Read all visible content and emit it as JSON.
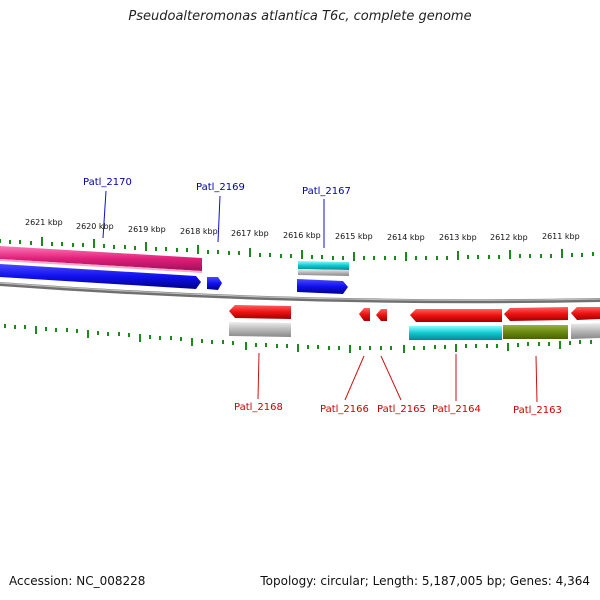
{
  "title": "Pseudoalteromonas atlantica T6c, complete genome",
  "accession": "Accession: NC_008228",
  "summary": "Topology: circular; Length: 5,187,005 bp; Genes: 4,364",
  "ticks": [
    "2621 kbp",
    "2620 kbp",
    "2619 kbp",
    "2618 kbp",
    "2617 kbp",
    "2616 kbp",
    "2615 kbp",
    "2614 kbp",
    "2613 kbp",
    "2612 kbp",
    "2611 kbp"
  ],
  "genes_top": [
    "Patl_2170",
    "Patl_2169",
    "Patl_2167"
  ],
  "genes_bottom": [
    "Patl_2168",
    "Patl_2166",
    "Patl_2165",
    "Patl_2164",
    "Patl_2163"
  ],
  "colors": {
    "backbone": "#808080",
    "tick": "#1a8a1a",
    "forward_gene": "#1010ee",
    "reverse_gene": "#ee1111",
    "pink_feature": "#e0207a",
    "cyan_feature": "#10c8d0",
    "olive_feature": "#6a8a10",
    "gray_feature": "#b0b0b0",
    "label_top": "#0000aa",
    "label_bottom": "#cc0000"
  }
}
